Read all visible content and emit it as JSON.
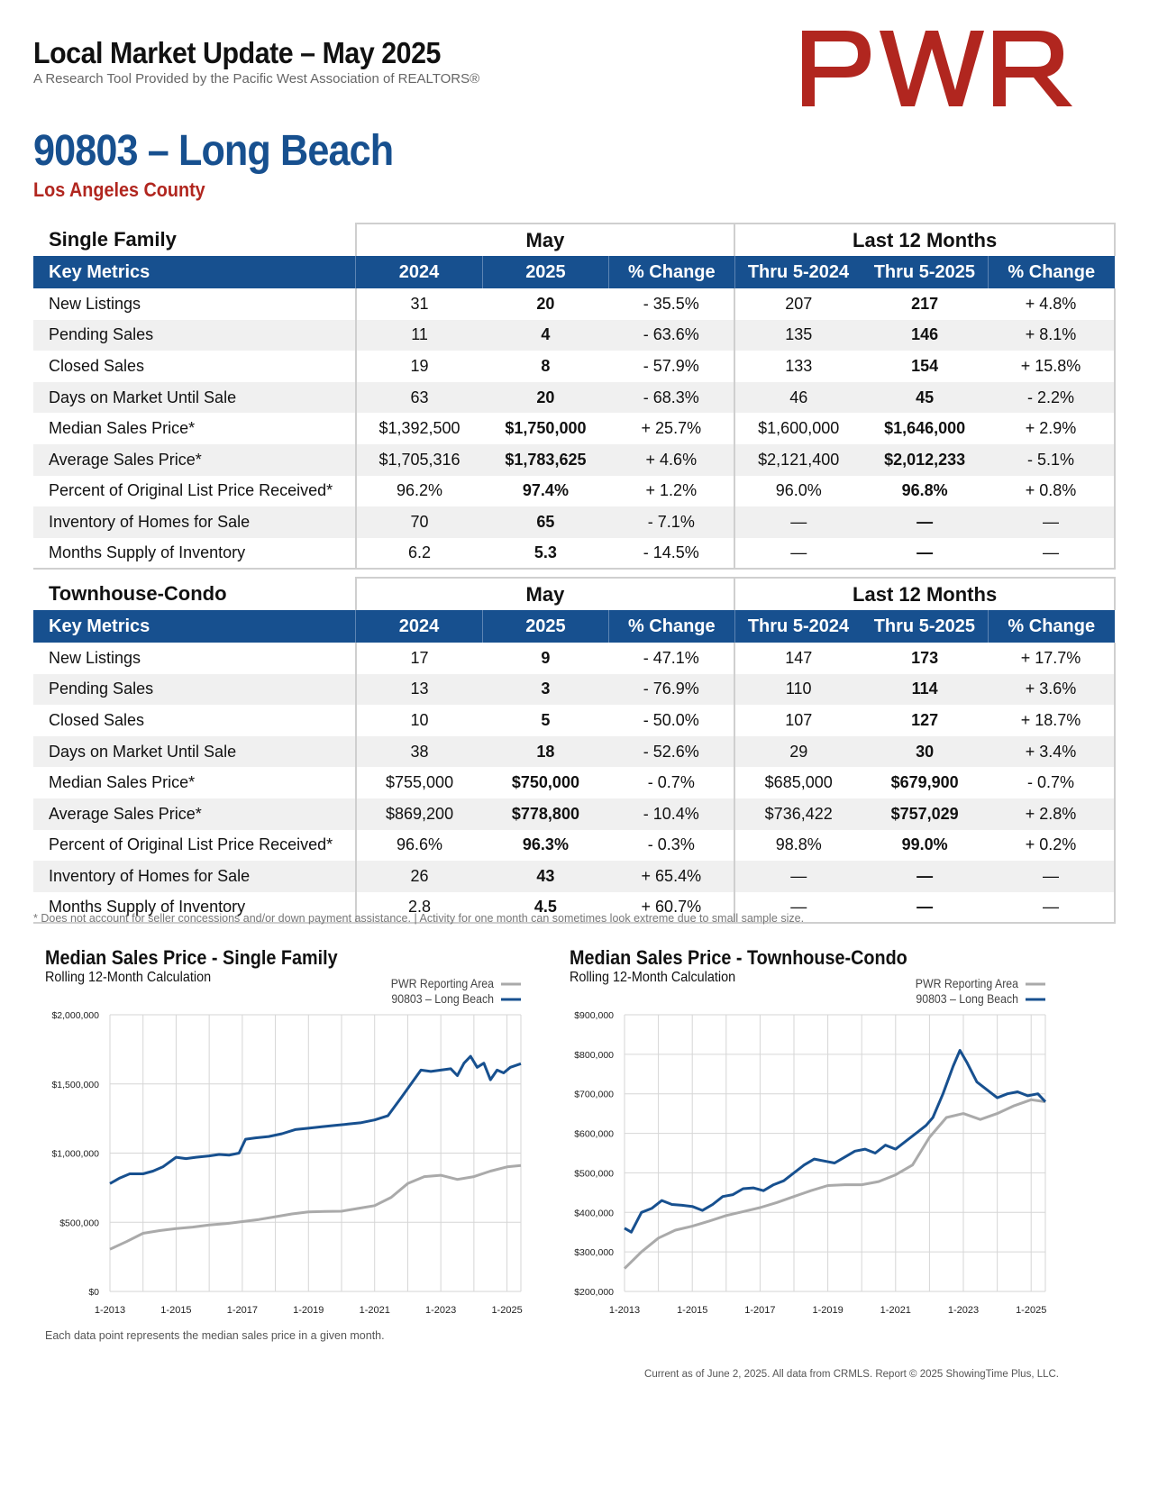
{
  "header": {
    "title": "Local Market Update – May 2025",
    "subtitle": "A Research Tool Provided by the Pacific West Association of REALTORS®",
    "logo_text": "PWR",
    "logo_color": "#b1261f"
  },
  "area": {
    "title": "90803 – Long Beach",
    "county": "Los Angeles County"
  },
  "colors": {
    "primary_blue": "#17508f",
    "accent_red": "#b1261f",
    "gray_line": "#aaaaaa"
  },
  "tables": [
    {
      "category": "Single Family",
      "group_month": "May",
      "group_year": "Last 12 Months",
      "headers": [
        "Key Metrics",
        "2024",
        "2025",
        "% Change",
        "Thru 5-2024",
        "Thru 5-2025",
        "% Change"
      ],
      "rows": [
        [
          "New Listings",
          "31",
          "20",
          "- 35.5%",
          "207",
          "217",
          "+ 4.8%"
        ],
        [
          "Pending Sales",
          "11",
          "4",
          "- 63.6%",
          "135",
          "146",
          "+ 8.1%"
        ],
        [
          "Closed Sales",
          "19",
          "8",
          "- 57.9%",
          "133",
          "154",
          "+ 15.8%"
        ],
        [
          "Days on Market Until Sale",
          "63",
          "20",
          "- 68.3%",
          "46",
          "45",
          "- 2.2%"
        ],
        [
          "Median Sales Price*",
          "$1,392,500",
          "$1,750,000",
          "+ 25.7%",
          "$1,600,000",
          "$1,646,000",
          "+ 2.9%"
        ],
        [
          "Average Sales Price*",
          "$1,705,316",
          "$1,783,625",
          "+ 4.6%",
          "$2,121,400",
          "$2,012,233",
          "- 5.1%"
        ],
        [
          "Percent of Original List Price Received*",
          "96.2%",
          "97.4%",
          "+ 1.2%",
          "96.0%",
          "96.8%",
          "+ 0.8%"
        ],
        [
          "Inventory of Homes for Sale",
          "70",
          "65",
          "- 7.1%",
          "—",
          "—",
          "—"
        ],
        [
          "Months Supply of Inventory",
          "6.2",
          "5.3",
          "- 14.5%",
          "—",
          "—",
          "—"
        ]
      ]
    },
    {
      "category": "Townhouse-Condo",
      "group_month": "May",
      "group_year": "Last 12 Months",
      "headers": [
        "Key Metrics",
        "2024",
        "2025",
        "% Change",
        "Thru 5-2024",
        "Thru 5-2025",
        "% Change"
      ],
      "rows": [
        [
          "New Listings",
          "17",
          "9",
          "- 47.1%",
          "147",
          "173",
          "+ 17.7%"
        ],
        [
          "Pending Sales",
          "13",
          "3",
          "- 76.9%",
          "110",
          "114",
          "+ 3.6%"
        ],
        [
          "Closed Sales",
          "10",
          "5",
          "- 50.0%",
          "107",
          "127",
          "+ 18.7%"
        ],
        [
          "Days on Market Until Sale",
          "38",
          "18",
          "- 52.6%",
          "29",
          "30",
          "+ 3.4%"
        ],
        [
          "Median Sales Price*",
          "$755,000",
          "$750,000",
          "- 0.7%",
          "$685,000",
          "$679,900",
          "- 0.7%"
        ],
        [
          "Average Sales Price*",
          "$869,200",
          "$778,800",
          "- 10.4%",
          "$736,422",
          "$757,029",
          "+ 2.8%"
        ],
        [
          "Percent of Original List Price Received*",
          "96.6%",
          "96.3%",
          "- 0.3%",
          "98.8%",
          "99.0%",
          "+ 0.2%"
        ],
        [
          "Inventory of Homes for Sale",
          "26",
          "43",
          "+ 65.4%",
          "—",
          "—",
          "—"
        ],
        [
          "Months Supply of Inventory",
          "2.8",
          "4.5",
          "+ 60.7%",
          "—",
          "—",
          "—"
        ]
      ]
    }
  ],
  "footnote": "* Does not account for seller concessions and/or down payment assistance. | Activity for one month can sometimes look extreme due to small sample size.",
  "chart_data": [
    {
      "type": "line",
      "title": "Median Sales Price - Single Family",
      "subtitle": "Rolling 12-Month Calculation",
      "ylim": [
        0,
        2000000
      ],
      "yticks": [
        0,
        500000,
        1000000,
        1500000,
        2000000
      ],
      "ytick_labels": [
        "$0",
        "$500,000",
        "$1,000,000",
        "$1,500,000",
        "$2,000,000"
      ],
      "xlim": [
        2013.0,
        2025.42
      ],
      "xticks": [
        2013,
        2015,
        2017,
        2019,
        2021,
        2023,
        2025
      ],
      "xtick_labels": [
        "1-2013",
        "1-2015",
        "1-2017",
        "1-2019",
        "1-2021",
        "1-2023",
        "1-2025"
      ],
      "legend_position": "top-right",
      "series": [
        {
          "name": "PWR Reporting Area",
          "color": "#aaaaaa",
          "x": [
            2013.0,
            2013.5,
            2014.0,
            2014.5,
            2015.0,
            2015.5,
            2016.0,
            2016.5,
            2017.0,
            2017.5,
            2018.0,
            2018.5,
            2019.0,
            2019.5,
            2020.0,
            2020.5,
            2021.0,
            2021.5,
            2022.0,
            2022.5,
            2023.0,
            2023.5,
            2024.0,
            2024.5,
            2025.0,
            2025.42
          ],
          "y": [
            305000,
            360000,
            420000,
            440000,
            455000,
            465000,
            480000,
            490000,
            505000,
            520000,
            540000,
            560000,
            575000,
            578000,
            580000,
            600000,
            620000,
            680000,
            780000,
            830000,
            840000,
            810000,
            830000,
            870000,
            900000,
            910000
          ]
        },
        {
          "name": "90803 – Long Beach",
          "color": "#17508f",
          "x": [
            2013.0,
            2013.3,
            2013.6,
            2014.0,
            2014.3,
            2014.6,
            2015.0,
            2015.3,
            2015.6,
            2016.0,
            2016.3,
            2016.6,
            2016.9,
            2017.1,
            2017.4,
            2017.8,
            2018.2,
            2018.6,
            2019.0,
            2019.4,
            2019.8,
            2020.2,
            2020.6,
            2021.0,
            2021.4,
            2021.8,
            2022.1,
            2022.4,
            2022.7,
            2023.0,
            2023.3,
            2023.5,
            2023.7,
            2023.9,
            2024.1,
            2024.3,
            2024.5,
            2024.7,
            2024.9,
            2025.1,
            2025.42
          ],
          "y": [
            780000,
            820000,
            850000,
            850000,
            870000,
            900000,
            970000,
            960000,
            970000,
            980000,
            990000,
            985000,
            1000000,
            1100000,
            1110000,
            1120000,
            1140000,
            1170000,
            1180000,
            1190000,
            1200000,
            1210000,
            1220000,
            1240000,
            1270000,
            1400000,
            1500000,
            1600000,
            1590000,
            1600000,
            1610000,
            1560000,
            1650000,
            1700000,
            1620000,
            1650000,
            1530000,
            1600000,
            1580000,
            1620000,
            1646000
          ]
        }
      ]
    },
    {
      "type": "line",
      "title": "Median Sales Price - Townhouse-Condo",
      "subtitle": "Rolling 12-Month Calculation",
      "ylim": [
        200000,
        900000
      ],
      "yticks": [
        200000,
        300000,
        400000,
        500000,
        600000,
        700000,
        800000,
        900000
      ],
      "ytick_labels": [
        "$200,000",
        "$300,000",
        "$400,000",
        "$500,000",
        "$600,000",
        "$700,000",
        "$800,000",
        "$900,000"
      ],
      "xlim": [
        2013.0,
        2025.42
      ],
      "xticks": [
        2013,
        2015,
        2017,
        2019,
        2021,
        2023,
        2025
      ],
      "xtick_labels": [
        "1-2013",
        "1-2015",
        "1-2017",
        "1-2019",
        "1-2021",
        "1-2023",
        "1-2025"
      ],
      "legend_position": "top-right",
      "series": [
        {
          "name": "PWR Reporting Area",
          "color": "#aaaaaa",
          "x": [
            2013.0,
            2013.5,
            2014.0,
            2014.5,
            2015.0,
            2015.5,
            2016.0,
            2016.5,
            2017.0,
            2017.5,
            2018.0,
            2018.5,
            2019.0,
            2019.5,
            2020.0,
            2020.5,
            2021.0,
            2021.5,
            2022.0,
            2022.5,
            2023.0,
            2023.5,
            2024.0,
            2024.5,
            2025.0,
            2025.42
          ],
          "y": [
            258000,
            300000,
            335000,
            355000,
            365000,
            378000,
            392000,
            402000,
            412000,
            425000,
            440000,
            455000,
            468000,
            470000,
            470000,
            478000,
            495000,
            520000,
            590000,
            640000,
            650000,
            635000,
            650000,
            670000,
            685000,
            679900
          ]
        },
        {
          "name": "90803 – Long Beach",
          "color": "#17508f",
          "x": [
            2013.0,
            2013.2,
            2013.5,
            2013.8,
            2014.1,
            2014.4,
            2014.7,
            2015.0,
            2015.3,
            2015.6,
            2015.9,
            2016.2,
            2016.5,
            2016.8,
            2017.1,
            2017.4,
            2017.7,
            2018.0,
            2018.3,
            2018.6,
            2018.9,
            2019.2,
            2019.5,
            2019.8,
            2020.1,
            2020.4,
            2020.7,
            2021.0,
            2021.3,
            2021.6,
            2021.9,
            2022.1,
            2022.4,
            2022.7,
            2022.9,
            2023.1,
            2023.4,
            2023.7,
            2024.0,
            2024.3,
            2024.6,
            2024.9,
            2025.2,
            2025.42
          ],
          "y": [
            360000,
            350000,
            400000,
            410000,
            430000,
            420000,
            418000,
            415000,
            405000,
            420000,
            440000,
            445000,
            460000,
            462000,
            455000,
            470000,
            480000,
            500000,
            520000,
            535000,
            530000,
            525000,
            540000,
            555000,
            560000,
            550000,
            570000,
            560000,
            580000,
            600000,
            620000,
            640000,
            700000,
            770000,
            810000,
            780000,
            730000,
            710000,
            690000,
            700000,
            705000,
            695000,
            700000,
            680000
          ]
        }
      ]
    }
  ],
  "chart_note": "Each data point represents the median sales price in a given month.",
  "footer": "Current as of June 2, 2025. All data from CRMLS. Report © 2025 ShowingTime Plus, LLC."
}
